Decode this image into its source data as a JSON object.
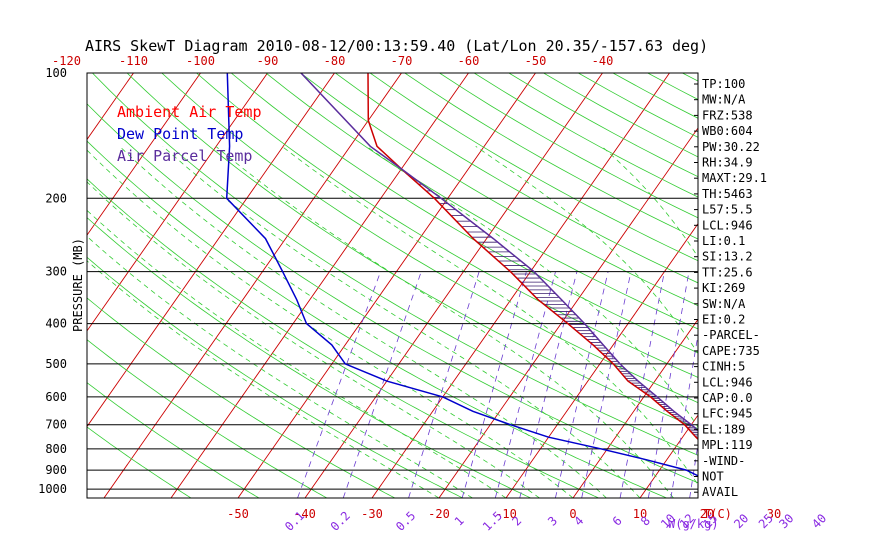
{
  "chart_data": {
    "type": "line",
    "title": "AIRS SkewT Diagram 2010-08-12/00:13:59.40 (Lat/Lon 20.35/-157.63 deg)",
    "ylabel": "PRESSURE (MB)",
    "xlabel_bottom_right": "T(C)",
    "mixing_ratio_unit": "W(g/kg)",
    "pressure_ticks": [
      "100",
      "200",
      "300",
      "400",
      "500",
      "600",
      "700",
      "800",
      "900",
      "1000"
    ],
    "pressure_levels": [
      100,
      200,
      300,
      400,
      500,
      600,
      700,
      800,
      900,
      1000
    ],
    "top_temp_ticks": [
      "-120",
      "-110",
      "-100",
      "-90",
      "-80",
      "-70",
      "-60",
      "-50",
      "-40"
    ],
    "bottom_temp_ticks": [
      "-50",
      "-40",
      "-30",
      "-20",
      "-10",
      "0",
      "10",
      "20",
      "30"
    ],
    "mixing_ratio_ticks": [
      "0.1",
      "0.2",
      "0.5",
      "1",
      "1.5",
      "2",
      "3",
      "4",
      "6",
      "8",
      "10",
      "12",
      "15",
      "20",
      "25",
      "30",
      "40"
    ],
    "legend": [
      {
        "name": "Ambient Air Temp",
        "color": "#ff0000"
      },
      {
        "name": "Dew Point Temp",
        "color": "#0000cc"
      },
      {
        "name": "Air Parcel Temp",
        "color": "#5a2d9c"
      }
    ],
    "series": [
      {
        "name": "Ambient Air Temp",
        "color": "#cc0000",
        "points": [
          [
            1000,
            27
          ],
          [
            950,
            22
          ],
          [
            900,
            19
          ],
          [
            850,
            17
          ],
          [
            800,
            15
          ],
          [
            750,
            12
          ],
          [
            700,
            9
          ],
          [
            650,
            5
          ],
          [
            600,
            1
          ],
          [
            550,
            -4
          ],
          [
            500,
            -8
          ],
          [
            450,
            -13
          ],
          [
            400,
            -19
          ],
          [
            350,
            -26
          ],
          [
            300,
            -33
          ],
          [
            250,
            -42
          ],
          [
            200,
            -52
          ],
          [
            170,
            -60
          ],
          [
            150,
            -66
          ],
          [
            130,
            -70
          ],
          [
            100,
            -75
          ]
        ]
      },
      {
        "name": "Dew Point Temp",
        "color": "#0000cc",
        "points": [
          [
            1000,
            22
          ],
          [
            950,
            18
          ],
          [
            900,
            14
          ],
          [
            850,
            7
          ],
          [
            800,
            -1
          ],
          [
            750,
            -10
          ],
          [
            700,
            -17
          ],
          [
            650,
            -24
          ],
          [
            600,
            -30
          ],
          [
            550,
            -40
          ],
          [
            500,
            -48
          ],
          [
            450,
            -52
          ],
          [
            400,
            -58
          ],
          [
            350,
            -62
          ],
          [
            300,
            -67
          ],
          [
            250,
            -73
          ],
          [
            200,
            -83
          ],
          [
            150,
            -88
          ],
          [
            100,
            -96
          ]
        ]
      },
      {
        "name": "Air Parcel Temp",
        "color": "#5a2d9c",
        "points": [
          [
            1000,
            27
          ],
          [
            950,
            23.5
          ],
          [
            900,
            21
          ],
          [
            850,
            19
          ],
          [
            800,
            16.5
          ],
          [
            750,
            13.5
          ],
          [
            700,
            10
          ],
          [
            650,
            6
          ],
          [
            600,
            2
          ],
          [
            550,
            -2.5
          ],
          [
            500,
            -7
          ],
          [
            450,
            -11.5
          ],
          [
            400,
            -16.5
          ],
          [
            350,
            -22.5
          ],
          [
            300,
            -29.5
          ],
          [
            250,
            -39
          ],
          [
            200,
            -51
          ],
          [
            170,
            -60
          ],
          [
            150,
            -67
          ],
          [
            100,
            -85
          ]
        ]
      }
    ]
  },
  "indices": [
    "TP:100",
    "MW:N/A",
    "FRZ:538",
    "WB0:604",
    "PW:30.22",
    "RH:34.9",
    "MAXT:29.1",
    "TH:5463",
    "L57:5.5",
    "LCL:946",
    "LI:0.1",
    "SI:13.2",
    "TT:25.6",
    "KI:269",
    "SW:N/A",
    "EI:0.2",
    "-PARCEL-",
    "CAPE:735",
    "CINH:5",
    "LCL:946",
    "CAP:0.0",
    "LFC:945",
    "EL:189",
    "MPL:119",
    "-WIND-",
    "NOT",
    "AVAIL"
  ]
}
